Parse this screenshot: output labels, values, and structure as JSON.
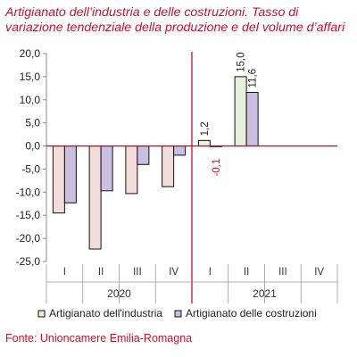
{
  "title_line1": "Artigianato dell’industria e delle costruzioni. Tasso di",
  "title_line2": "variazione tendenziale della produzione e del volume d’affari",
  "source": "Fonte: Unioncamere Emilia-Romagna",
  "chart_data": {
    "type": "bar",
    "ylim": [
      -25,
      20
    ],
    "yticks": [
      -25,
      -20,
      -15,
      -10,
      -5,
      0,
      5,
      10,
      15,
      20
    ],
    "ytick_labels": [
      "-25,0",
      "-20,0",
      "-15,0",
      "-10,0",
      "-5,0",
      "0,0",
      "5,0",
      "10,0",
      "15,0",
      "20,0"
    ],
    "categories": [
      "I",
      "II",
      "III",
      "IV",
      "I",
      "II",
      "III",
      "IV"
    ],
    "groups": [
      {
        "label": "2020",
        "start": 0,
        "count": 4
      },
      {
        "label": "2021",
        "start": 4,
        "count": 4
      }
    ],
    "series": [
      {
        "name": "Artigianato dell'industria",
        "color_2020": "#f3dcdc",
        "color_2021": "#e8f0dc",
        "values": [
          -14.5,
          -22.3,
          -10.3,
          -8.8,
          1.2,
          15.0,
          null,
          null
        ],
        "data_labels": [
          null,
          null,
          null,
          null,
          "1,2",
          "15,0",
          null,
          null
        ]
      },
      {
        "name": "Artigianato delle costruzioni",
        "color": "#c9bfe0",
        "values": [
          -12.3,
          -9.7,
          -4.0,
          -2.0,
          -0.1,
          11.6,
          null,
          null
        ],
        "data_labels": [
          null,
          null,
          null,
          null,
          "-0,1",
          "11,6",
          null,
          null
        ]
      }
    ],
    "zero_line_color": "#c8102e",
    "divider_color": "#c8102e",
    "legend_position": "bottom",
    "grid": false
  }
}
